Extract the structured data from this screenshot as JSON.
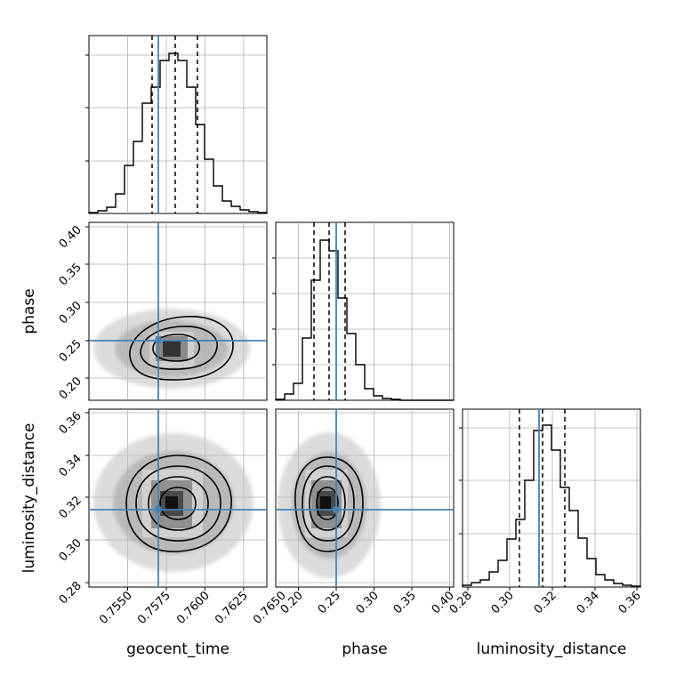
{
  "chart_data": {
    "type": "corner",
    "parameters": [
      {
        "name": "geocent_time",
        "range": [
          0.7535,
          0.765
        ],
        "ticks": [
          0.755,
          0.7575,
          0.76,
          0.7625,
          0.765
        ],
        "tick_labels": [
          "0.7550",
          "0.7575",
          "0.7600",
          "0.7625",
          "0.7650"
        ],
        "truth": 0.758,
        "quantiles": [
          0.7577,
          0.7591,
          0.7606
        ]
      },
      {
        "name": "phase",
        "range": [
          0.17,
          0.405
        ],
        "ticks": [
          0.2,
          0.25,
          0.3,
          0.35,
          0.4
        ],
        "tick_labels": [
          "0.20",
          "0.25",
          "0.30",
          "0.35",
          "0.40"
        ],
        "truth": 0.25,
        "quantiles": [
          0.222,
          0.242,
          0.262
        ]
      },
      {
        "name": "luminosity_distance",
        "range": [
          0.277,
          0.361
        ],
        "ticks": [
          0.28,
          0.3,
          0.32,
          0.34,
          0.36
        ],
        "tick_labels": [
          "0.28",
          "0.30",
          "0.32",
          "0.34",
          "0.36"
        ],
        "truth": 0.313,
        "quantiles": [
          0.303,
          0.314,
          0.324
        ]
      }
    ],
    "histograms": [
      {
        "param": "geocent_time",
        "bin_edges_start": 0.7535,
        "bin_width": 0.000575,
        "counts": [
          0.5,
          1.5,
          3.5,
          11,
          27,
          41,
          63,
          72,
          87,
          91,
          87,
          72,
          51,
          31,
          16,
          7,
          4,
          2,
          1,
          0.5
        ]
      },
      {
        "param": "phase",
        "bin_edges_start": 0.17,
        "bin_width": 0.01175,
        "counts": [
          1,
          4,
          12,
          40,
          77,
          80,
          74,
          45,
          20,
          7,
          3,
          1,
          0.5,
          0,
          0,
          0,
          0,
          0,
          0,
          0
        ]
      },
      {
        "param": "luminosity_distance",
        "bin_edges_start": 0.277,
        "bin_width": 0.0042,
        "counts": [
          2,
          4,
          6,
          12,
          21,
          36,
          52,
          68,
          73,
          72,
          60,
          43,
          28,
          18,
          10,
          6,
          4,
          2,
          1,
          1
        ]
      }
    ],
    "hist2d": [
      {
        "x": "geocent_time",
        "y": "phase",
        "peak": [
          0.7591,
          0.238
        ]
      },
      {
        "x": "geocent_time",
        "y": "luminosity_distance",
        "peak": [
          0.7591,
          0.316
        ]
      },
      {
        "x": "phase",
        "y": "luminosity_distance",
        "peak": [
          0.242,
          0.315
        ]
      }
    ],
    "truth_color": "#4682b4",
    "grid": true
  }
}
